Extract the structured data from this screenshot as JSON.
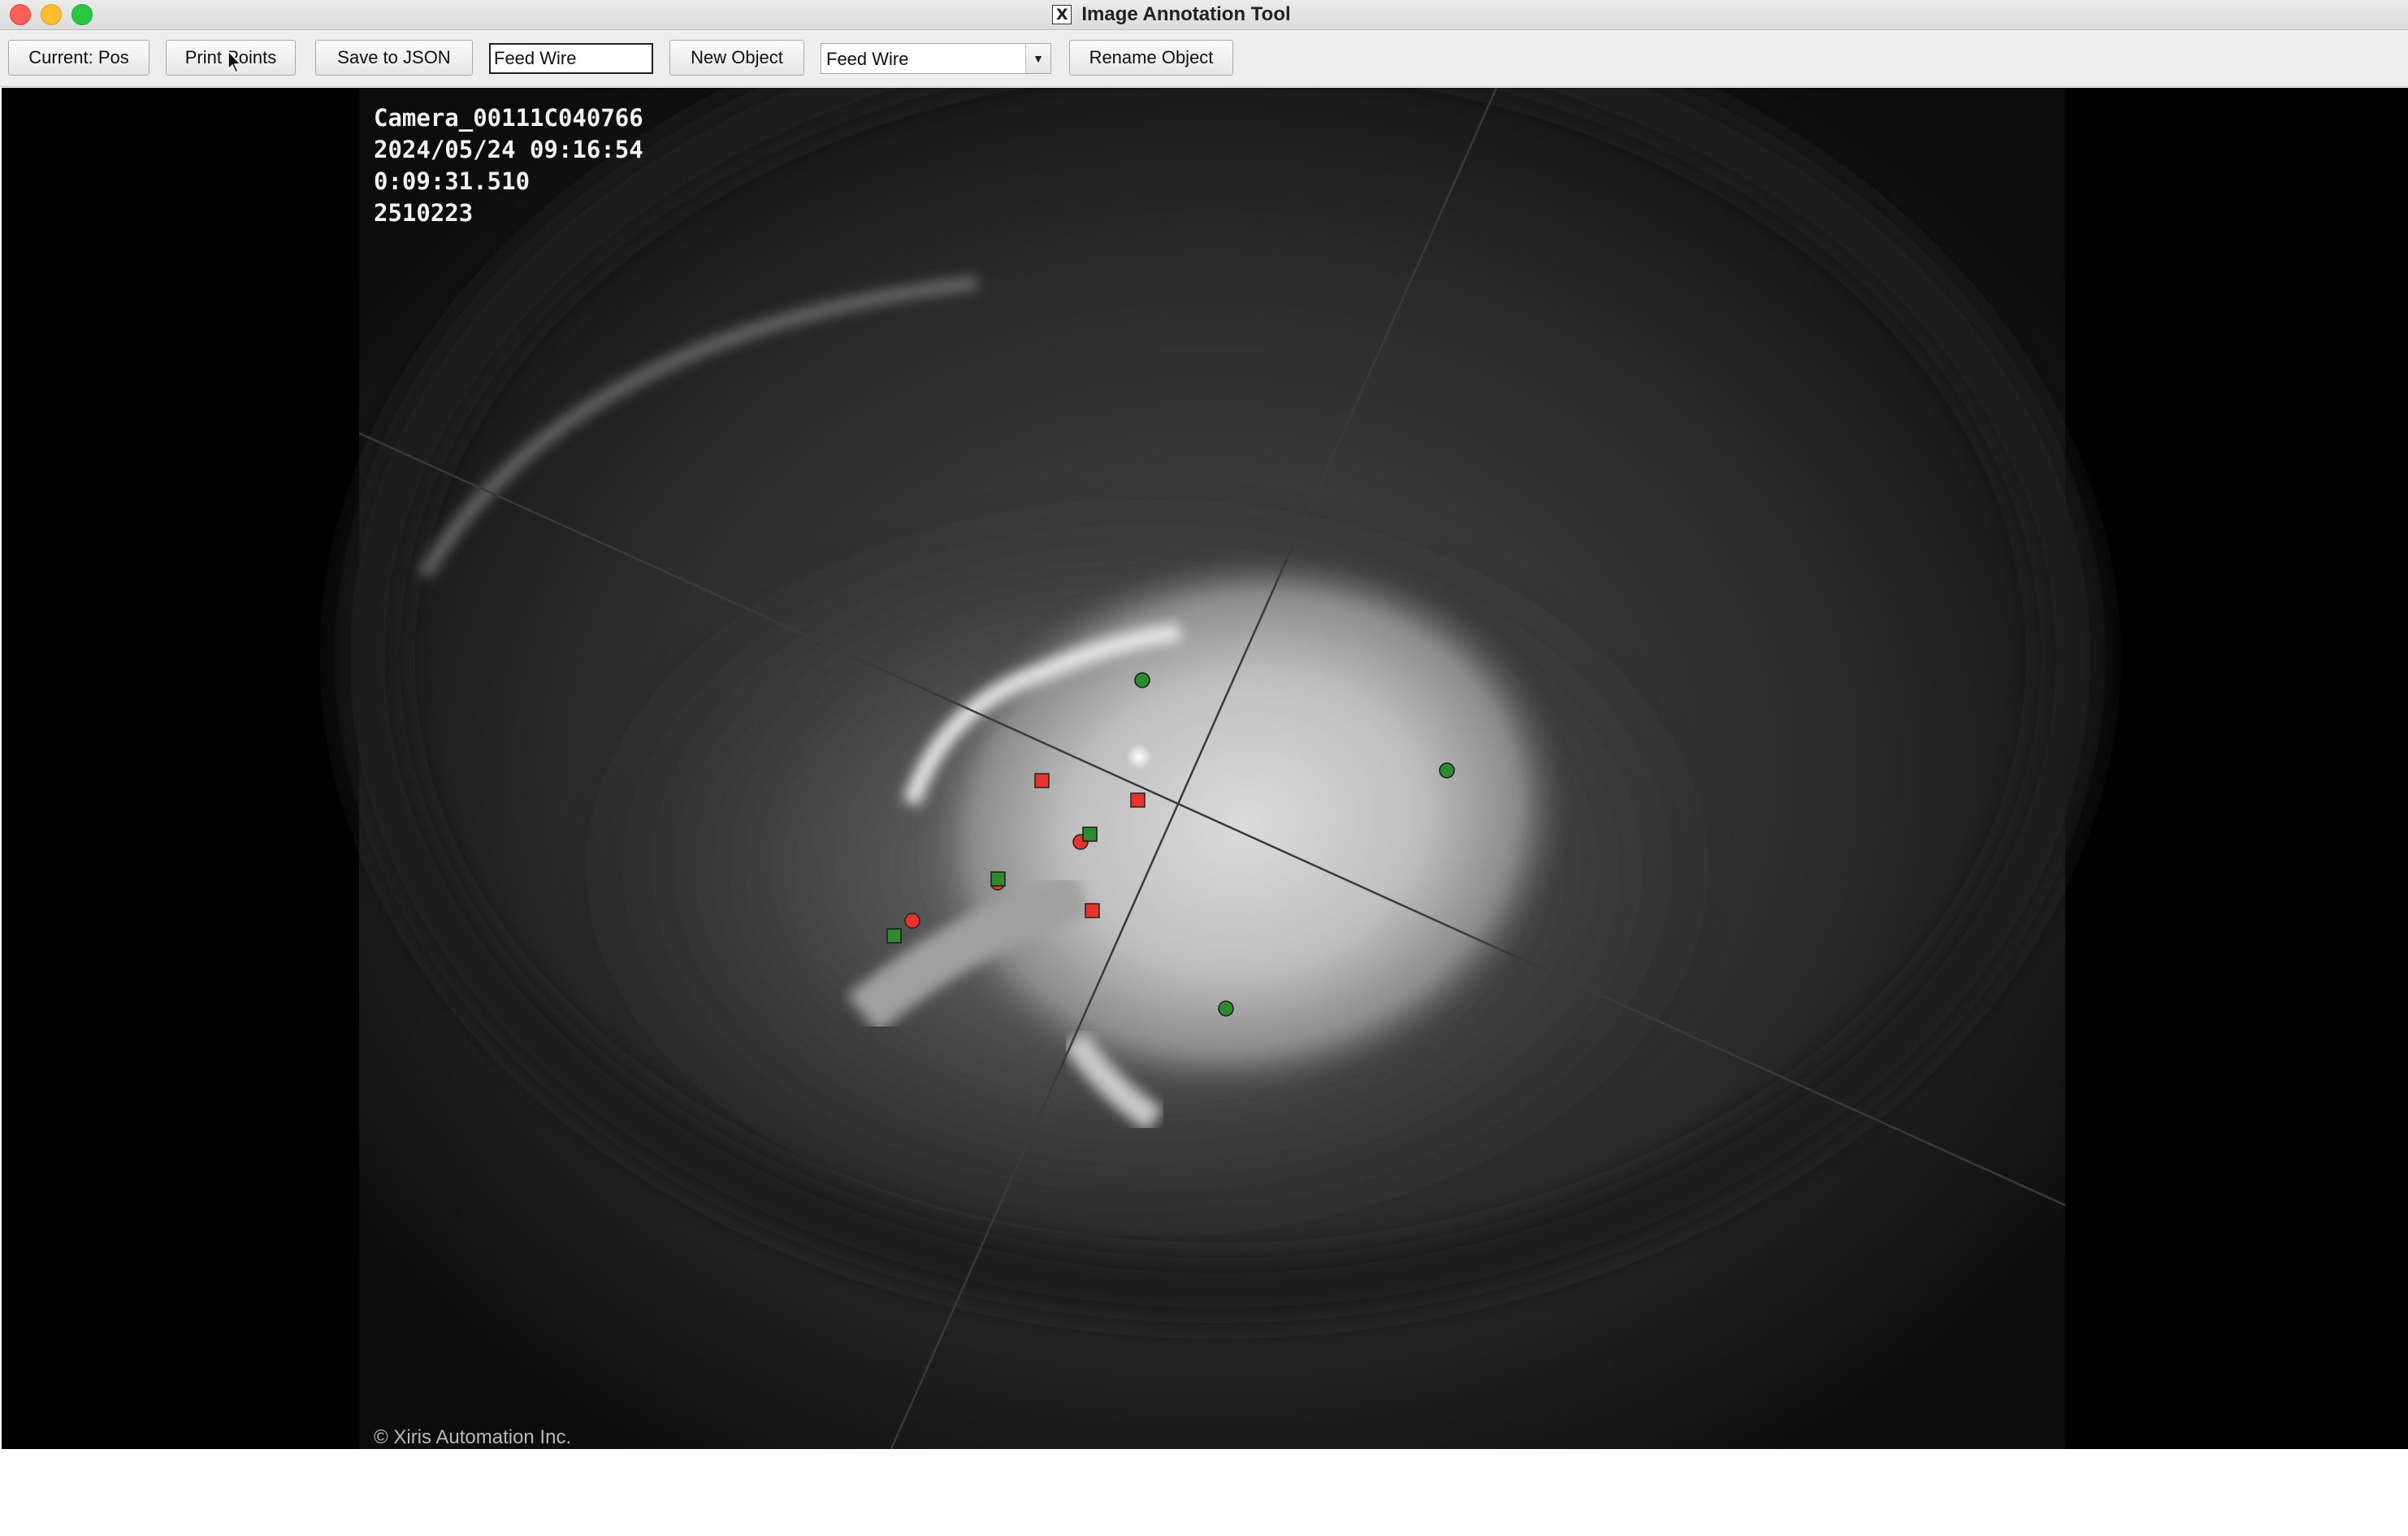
{
  "window": {
    "title": "Image Annotation Tool",
    "app_icon": "x11-icon"
  },
  "toolbar": {
    "current_pos_label": "Current: Pos",
    "print_points_label": "Print Points",
    "save_json_label": "Save to JSON",
    "object_name_value": "Feed Wire",
    "new_object_label": "New Object",
    "object_select_value": "Feed Wire",
    "rename_object_label": "Rename Object"
  },
  "image_overlay": {
    "camera_id": "Camera_00111C040766",
    "datetime": "2024/05/24 09:16:54",
    "elapsed": "0:09:31.510",
    "frame_number": "2510223",
    "copyright": "© Xiris Automation Inc."
  },
  "colors": {
    "red_marker": "#e8322c",
    "green_marker": "#2f8a2f",
    "guide_line": "#3a3a3a"
  }
}
